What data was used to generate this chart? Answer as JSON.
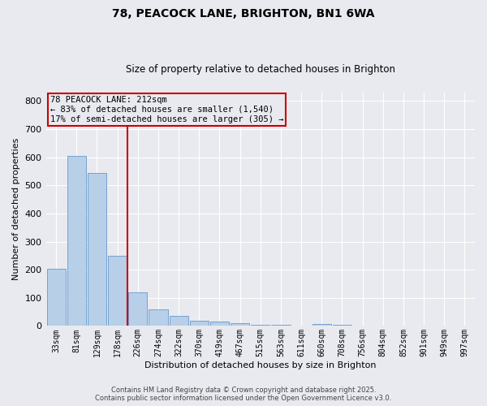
{
  "title_line1": "78, PEACOCK LANE, BRIGHTON, BN1 6WA",
  "title_line2": "Size of property relative to detached houses in Brighton",
  "xlabel": "Distribution of detached houses by size in Brighton",
  "ylabel": "Number of detached properties",
  "bar_color": "#b8cfe8",
  "bar_edge_color": "#6699cc",
  "background_color": "#e8eaf0",
  "grid_color": "#ffffff",
  "red_line_color": "#cc0000",
  "annotation_box_color": "#cc0000",
  "categories": [
    "33sqm",
    "81sqm",
    "129sqm",
    "178sqm",
    "226sqm",
    "274sqm",
    "322sqm",
    "370sqm",
    "419sqm",
    "467sqm",
    "515sqm",
    "563sqm",
    "611sqm",
    "660sqm",
    "708sqm",
    "756sqm",
    "804sqm",
    "852sqm",
    "901sqm",
    "949sqm",
    "997sqm"
  ],
  "values": [
    203,
    605,
    545,
    250,
    120,
    60,
    35,
    18,
    15,
    10,
    5,
    3,
    2,
    8,
    3,
    0,
    0,
    0,
    0,
    0,
    0
  ],
  "red_line_index": 4,
  "annotation_text": "78 PEACOCK LANE: 212sqm\n← 83% of detached houses are smaller (1,540)\n17% of semi-detached houses are larger (305) →",
  "ylim": [
    0,
    830
  ],
  "yticks": [
    0,
    100,
    200,
    300,
    400,
    500,
    600,
    700,
    800
  ],
  "footer_line1": "Contains HM Land Registry data © Crown copyright and database right 2025.",
  "footer_line2": "Contains public sector information licensed under the Open Government Licence v3.0."
}
